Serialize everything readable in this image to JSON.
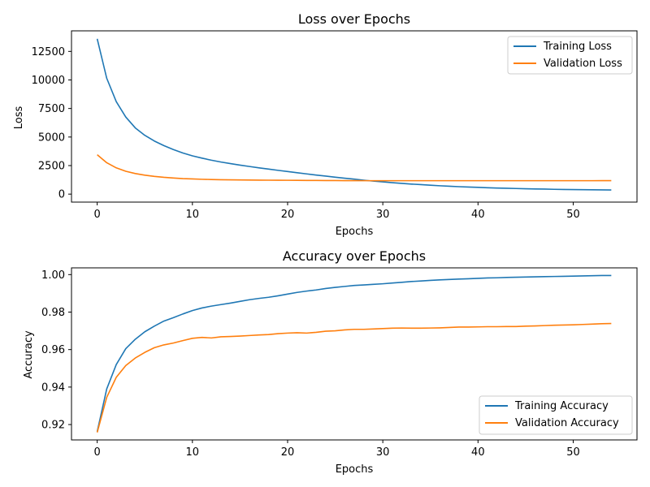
{
  "chart_data": [
    {
      "type": "line",
      "title": "Loss over Epochs",
      "xlabel": "Epochs",
      "ylabel": "Loss",
      "xlim": [
        -2.7,
        56.7
      ],
      "ylim": [
        -700,
        14300
      ],
      "xticks": [
        0,
        10,
        20,
        30,
        40,
        50
      ],
      "yticks": [
        0,
        2500,
        5000,
        7500,
        10000,
        12500
      ],
      "grid": false,
      "legend_position": "top-right",
      "x": [
        0,
        1,
        2,
        3,
        4,
        5,
        6,
        7,
        8,
        9,
        10,
        11,
        12,
        13,
        14,
        15,
        16,
        17,
        18,
        19,
        20,
        21,
        22,
        23,
        24,
        25,
        26,
        27,
        28,
        29,
        30,
        31,
        32,
        33,
        34,
        35,
        36,
        37,
        38,
        39,
        40,
        41,
        42,
        43,
        44,
        45,
        46,
        47,
        48,
        49,
        50,
        51,
        52,
        53,
        54
      ],
      "series": [
        {
          "name": "Training Loss",
          "color": "#1f77b4",
          "values": [
            13600,
            10150,
            8100,
            6750,
            5800,
            5150,
            4650,
            4250,
            3900,
            3600,
            3350,
            3150,
            2970,
            2810,
            2670,
            2540,
            2420,
            2300,
            2190,
            2080,
            1980,
            1870,
            1770,
            1670,
            1580,
            1480,
            1390,
            1310,
            1220,
            1140,
            1070,
            1000,
            940,
            880,
            830,
            780,
            730,
            690,
            650,
            620,
            590,
            560,
            530,
            510,
            490,
            470,
            450,
            440,
            420,
            410,
            400,
            390,
            380,
            370,
            360
          ]
        },
        {
          "name": "Validation Loss",
          "color": "#ff7f0e",
          "values": [
            3450,
            2750,
            2300,
            2000,
            1800,
            1660,
            1550,
            1470,
            1410,
            1360,
            1330,
            1300,
            1280,
            1260,
            1250,
            1240,
            1230,
            1225,
            1220,
            1215,
            1210,
            1205,
            1200,
            1195,
            1190,
            1185,
            1180,
            1180,
            1175,
            1175,
            1175,
            1175,
            1175,
            1175,
            1175,
            1175,
            1175,
            1175,
            1175,
            1175,
            1175,
            1175,
            1175,
            1175,
            1175,
            1175,
            1175,
            1175,
            1175,
            1175,
            1175,
            1175,
            1175,
            1180,
            1180
          ]
        }
      ]
    },
    {
      "type": "line",
      "title": "Accuracy over Epochs",
      "xlabel": "Epochs",
      "ylabel": "Accuracy",
      "xlim": [
        -2.7,
        56.7
      ],
      "ylim": [
        0.9118,
        1.0036
      ],
      "xticks": [
        0,
        10,
        20,
        30,
        40,
        50
      ],
      "yticks": [
        0.92,
        0.94,
        0.96,
        0.98,
        1.0
      ],
      "ytick_labels": [
        "0.92",
        "0.94",
        "0.96",
        "0.98",
        "1.00"
      ],
      "grid": false,
      "legend_position": "lower-right",
      "x": [
        0,
        1,
        2,
        3,
        4,
        5,
        6,
        7,
        8,
        9,
        10,
        11,
        12,
        13,
        14,
        15,
        16,
        17,
        18,
        19,
        20,
        21,
        22,
        23,
        24,
        25,
        26,
        27,
        28,
        29,
        30,
        31,
        32,
        33,
        34,
        35,
        36,
        37,
        38,
        39,
        40,
        41,
        42,
        43,
        44,
        45,
        46,
        47,
        48,
        49,
        50,
        51,
        52,
        53,
        54
      ],
      "series": [
        {
          "name": "Training Accuracy",
          "color": "#1f77b4",
          "values": [
            0.9162,
            0.939,
            0.952,
            0.9605,
            0.9655,
            0.9695,
            0.9725,
            0.9752,
            0.977,
            0.979,
            0.9808,
            0.9822,
            0.9832,
            0.984,
            0.9848,
            0.9857,
            0.9866,
            0.9873,
            0.9879,
            0.9887,
            0.9896,
            0.9905,
            0.9912,
            0.9918,
            0.9926,
            0.9932,
            0.9937,
            0.9942,
            0.9945,
            0.9948,
            0.9951,
            0.9955,
            0.9959,
            0.9963,
            0.9966,
            0.9969,
            0.9972,
            0.9974,
            0.9976,
            0.9978,
            0.998,
            0.9982,
            0.9983,
            0.9985,
            0.9986,
            0.9987,
            0.9988,
            0.9989,
            0.999,
            0.9991,
            0.9992,
            0.9993,
            0.9994,
            0.9995,
            0.9995
          ]
        },
        {
          "name": "Validation Accuracy",
          "color": "#ff7f0e",
          "values": [
            0.9158,
            0.9345,
            0.9452,
            0.9515,
            0.9555,
            0.9585,
            0.961,
            0.9625,
            0.9635,
            0.9648,
            0.966,
            0.9665,
            0.9662,
            0.9668,
            0.967,
            0.9672,
            0.9675,
            0.9678,
            0.968,
            0.9685,
            0.9688,
            0.969,
            0.9688,
            0.9692,
            0.9698,
            0.97,
            0.9705,
            0.9708,
            0.9708,
            0.971,
            0.9712,
            0.9714,
            0.9715,
            0.9714,
            0.9714,
            0.9715,
            0.9716,
            0.9718,
            0.972,
            0.972,
            0.9721,
            0.9722,
            0.9722,
            0.9723,
            0.9723,
            0.9725,
            0.9726,
            0.9728,
            0.973,
            0.9731,
            0.9732,
            0.9734,
            0.9736,
            0.9738,
            0.9739
          ]
        }
      ]
    }
  ]
}
